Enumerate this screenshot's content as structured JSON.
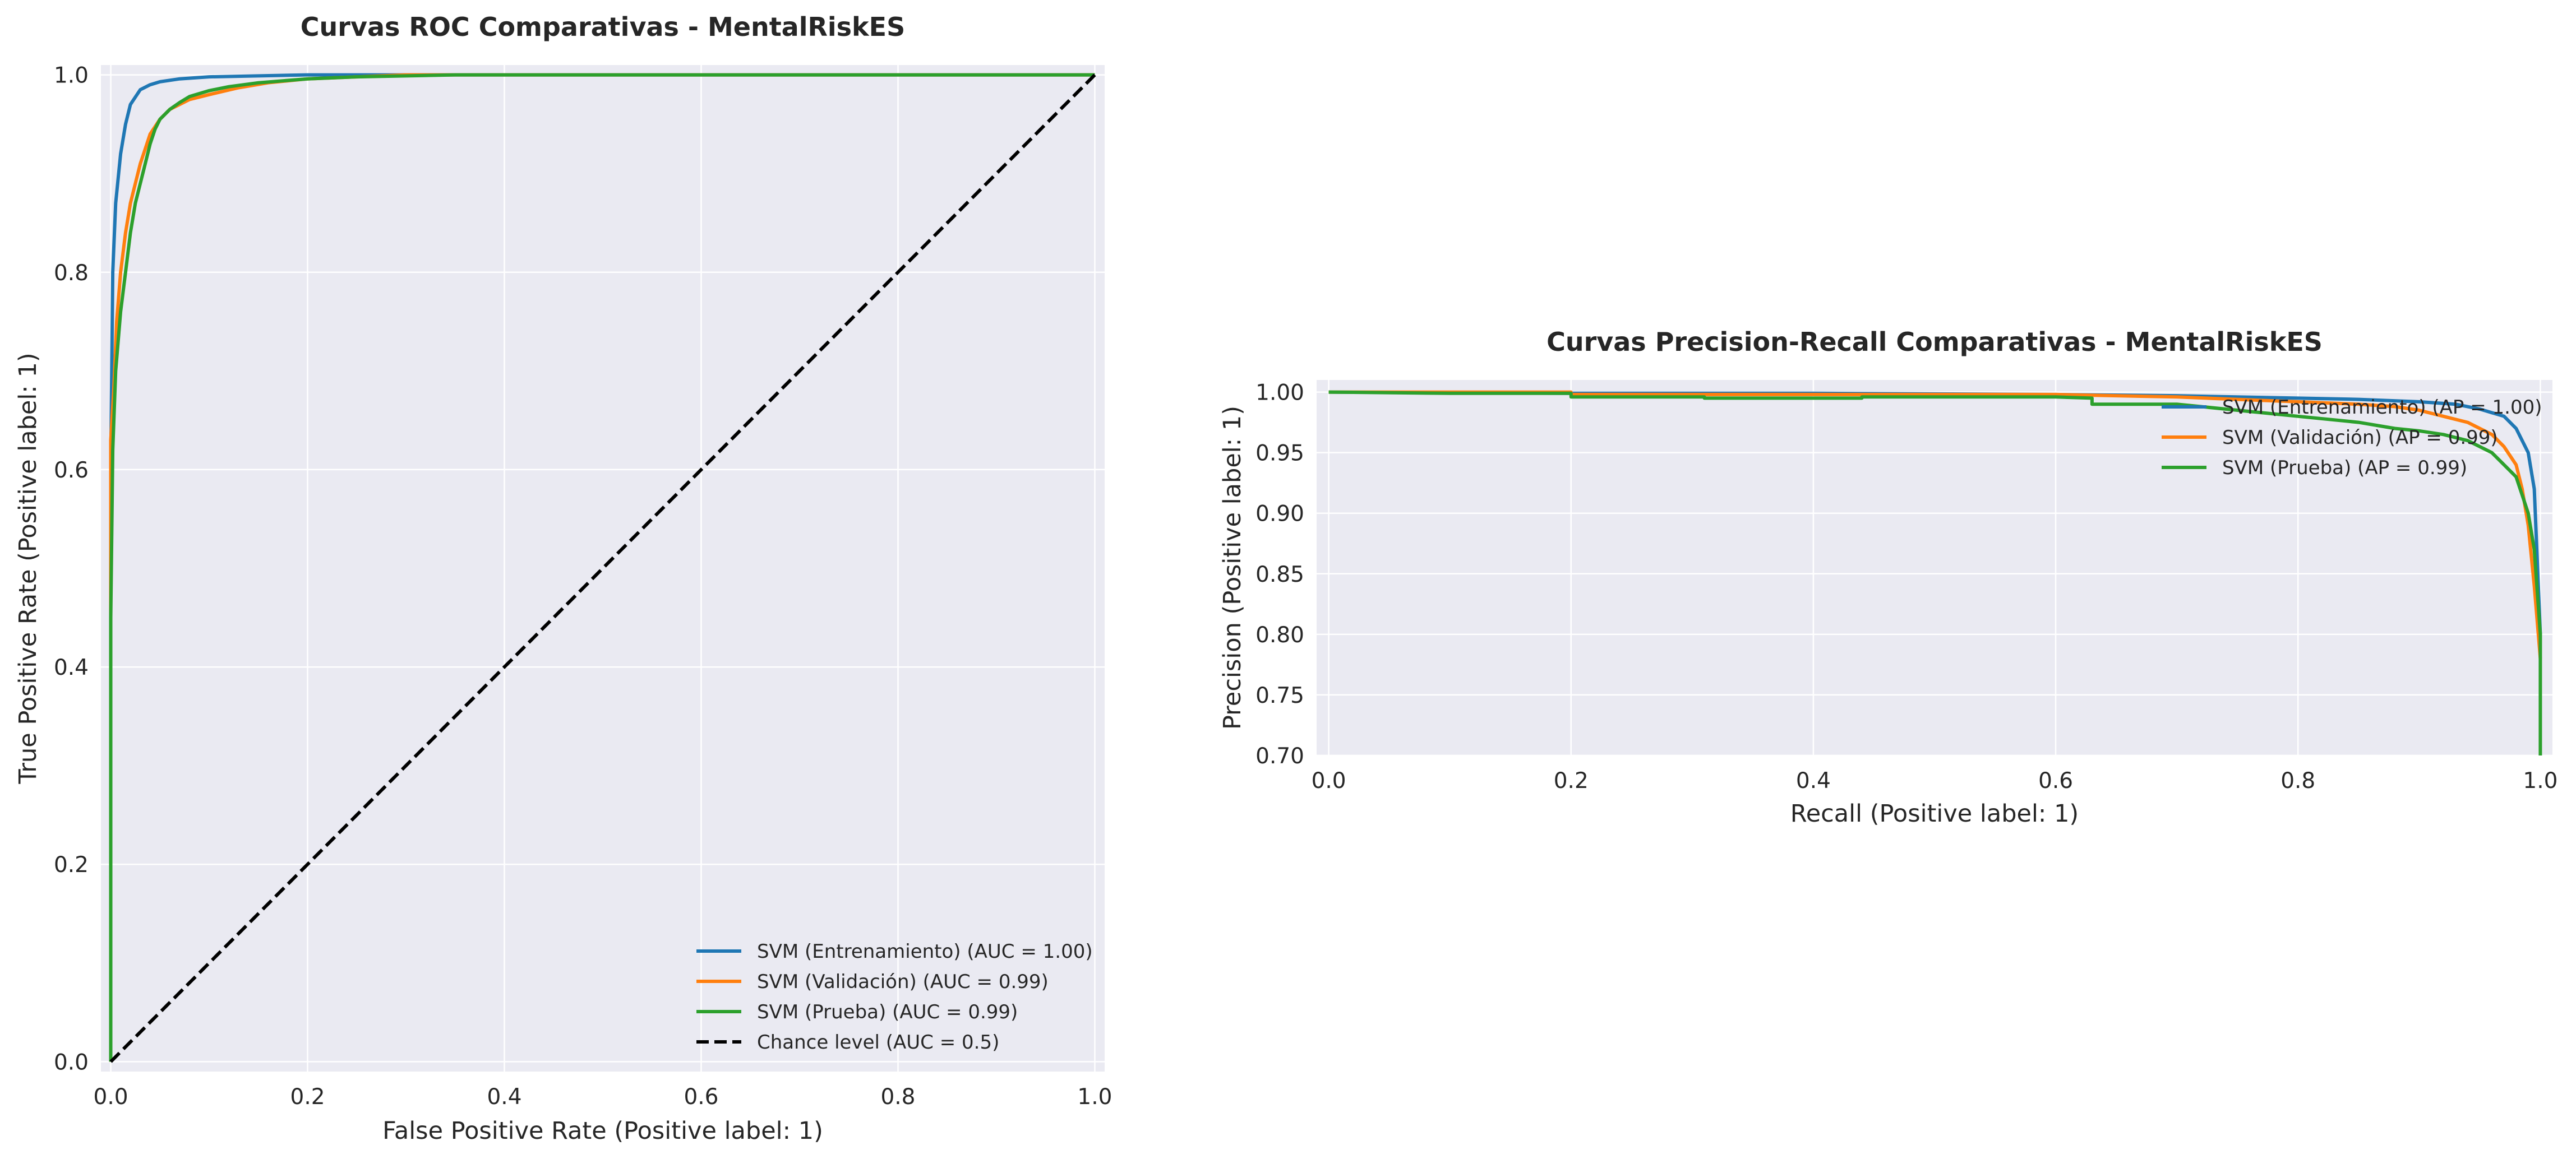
{
  "colors": {
    "entrenamiento": "#1f77b4",
    "validacion": "#ff7f0e",
    "prueba": "#2ca02c",
    "chance": "#000000",
    "plot_background": "#eaeaf2",
    "grid": "#ffffff"
  },
  "chart_data": [
    {
      "type": "line",
      "title": "Curvas ROC Comparativas - MentalRiskES",
      "xlabel": "False Positive Rate (Positive label: 1)",
      "ylabel": "True Positive Rate (Positive label: 1)",
      "xlim": [
        -0.01,
        1.01
      ],
      "ylim": [
        -0.01,
        1.01
      ],
      "xticks": [
        0.0,
        0.2,
        0.4,
        0.6,
        0.8,
        1.0
      ],
      "yticks": [
        0.0,
        0.2,
        0.4,
        0.6,
        0.8,
        1.0
      ],
      "xtick_labels": [
        "0.0",
        "0.2",
        "0.4",
        "0.6",
        "0.8",
        "1.0"
      ],
      "ytick_labels": [
        "0.0",
        "0.2",
        "0.4",
        "0.6",
        "0.8",
        "1.0"
      ],
      "grid": true,
      "legend_position": "lower-right",
      "series": [
        {
          "name": "SVM (Entrenamiento) (AUC = 1.00)",
          "color_key": "entrenamiento",
          "style": "solid",
          "x": [
            0,
            0,
            0.002,
            0.005,
            0.01,
            0.015,
            0.02,
            0.03,
            0.04,
            0.05,
            0.07,
            0.1,
            0.15,
            0.2,
            0.3,
            0.5,
            0.7,
            1.0
          ],
          "y": [
            0,
            0.6,
            0.8,
            0.87,
            0.92,
            0.95,
            0.97,
            0.985,
            0.99,
            0.993,
            0.996,
            0.998,
            0.999,
            1.0,
            1.0,
            1.0,
            1.0,
            1.0
          ]
        },
        {
          "name": "SVM (Validación) (AUC = 0.99)",
          "color_key": "validacion",
          "style": "solid",
          "x": [
            0,
            0,
            0.003,
            0.006,
            0.01,
            0.015,
            0.02,
            0.025,
            0.03,
            0.035,
            0.04,
            0.05,
            0.06,
            0.08,
            0.1,
            0.13,
            0.16,
            0.2,
            0.25,
            0.3,
            0.4,
            0.6,
            1.0
          ],
          "y": [
            0,
            0.63,
            0.68,
            0.75,
            0.8,
            0.84,
            0.87,
            0.89,
            0.91,
            0.925,
            0.94,
            0.955,
            0.965,
            0.975,
            0.98,
            0.987,
            0.992,
            0.996,
            0.998,
            1.0,
            1.0,
            1.0,
            1.0
          ]
        },
        {
          "name": "SVM (Prueba) (AUC = 0.99)",
          "color_key": "prueba",
          "style": "solid",
          "x": [
            0,
            0,
            0.002,
            0.005,
            0.01,
            0.015,
            0.02,
            0.025,
            0.03,
            0.035,
            0.04,
            0.045,
            0.05,
            0.06,
            0.07,
            0.08,
            0.1,
            0.12,
            0.15,
            0.2,
            0.25,
            0.35,
            0.5,
            1.0
          ],
          "y": [
            0,
            0.45,
            0.62,
            0.7,
            0.76,
            0.8,
            0.84,
            0.87,
            0.89,
            0.91,
            0.93,
            0.945,
            0.955,
            0.965,
            0.972,
            0.978,
            0.984,
            0.988,
            0.992,
            0.996,
            0.998,
            1.0,
            1.0,
            1.0
          ]
        },
        {
          "name": "Chance level (AUC = 0.5)",
          "color_key": "chance",
          "style": "dashed",
          "x": [
            0,
            1
          ],
          "y": [
            0,
            1
          ]
        }
      ]
    },
    {
      "type": "line",
      "title": "Curvas Precision-Recall Comparativas - MentalRiskES",
      "xlabel": "Recall (Positive label: 1)",
      "ylabel": "Precision (Positive label: 1)",
      "xlim": [
        -0.01,
        1.01
      ],
      "ylim": [
        0.7,
        1.01
      ],
      "xticks": [
        0.0,
        0.2,
        0.4,
        0.6,
        0.8,
        1.0
      ],
      "yticks": [
        0.7,
        0.75,
        0.8,
        0.85,
        0.9,
        0.95,
        1.0
      ],
      "xtick_labels": [
        "0.0",
        "0.2",
        "0.4",
        "0.6",
        "0.8",
        "1.0"
      ],
      "ytick_labels": [
        "0.70",
        "0.75",
        "0.80",
        "0.85",
        "0.90",
        "0.95",
        "1.00"
      ],
      "grid": true,
      "legend_position": "upper-right",
      "series": [
        {
          "name": "SVM (Entrenamiento) (AP = 1.00)",
          "color_key": "entrenamiento",
          "style": "solid",
          "x": [
            0,
            0.2,
            0.4,
            0.6,
            0.7,
            0.8,
            0.85,
            0.9,
            0.93,
            0.95,
            0.97,
            0.98,
            0.99,
            0.995,
            1.0
          ],
          "y": [
            1.0,
            0.999,
            0.999,
            0.998,
            0.997,
            0.995,
            0.994,
            0.992,
            0.99,
            0.986,
            0.98,
            0.97,
            0.95,
            0.92,
            0.8
          ]
        },
        {
          "name": "SVM (Validación) (AP = 0.99)",
          "color_key": "validacion",
          "style": "solid",
          "x": [
            0,
            0.1,
            0.2,
            0.2,
            0.3,
            0.4,
            0.5,
            0.6,
            0.65,
            0.7,
            0.75,
            0.8,
            0.85,
            0.88,
            0.9,
            0.92,
            0.94,
            0.96,
            0.97,
            0.98,
            0.985,
            0.99,
            0.995,
            1.0
          ],
          "y": [
            1.0,
            1.0,
            1.0,
            0.998,
            0.998,
            0.998,
            0.998,
            0.998,
            0.997,
            0.996,
            0.994,
            0.992,
            0.99,
            0.988,
            0.985,
            0.98,
            0.975,
            0.965,
            0.955,
            0.94,
            0.92,
            0.89,
            0.84,
            0.78
          ]
        },
        {
          "name": "SVM (Prueba) (AP = 0.99)",
          "color_key": "prueba",
          "style": "solid",
          "x": [
            0,
            0.1,
            0.2,
            0.2,
            0.31,
            0.31,
            0.44,
            0.44,
            0.5,
            0.6,
            0.63,
            0.63,
            0.7,
            0.75,
            0.8,
            0.85,
            0.88,
            0.9,
            0.92,
            0.94,
            0.96,
            0.97,
            0.98,
            0.99,
            0.995,
            1.0,
            1.0
          ],
          "y": [
            1.0,
            0.999,
            0.999,
            0.996,
            0.996,
            0.995,
            0.995,
            0.996,
            0.996,
            0.996,
            0.995,
            0.99,
            0.99,
            0.985,
            0.98,
            0.975,
            0.97,
            0.968,
            0.965,
            0.96,
            0.95,
            0.94,
            0.93,
            0.9,
            0.87,
            0.8,
            0.7
          ]
        }
      ]
    }
  ]
}
